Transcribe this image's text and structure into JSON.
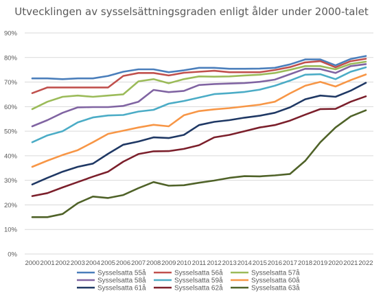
{
  "chart_data": {
    "type": "line",
    "title": "Utvecklingen av sysselsättningsgraden enligt ålder under 2000-talet",
    "xlabel": "",
    "ylabel": "",
    "ylim": [
      0,
      90
    ],
    "y_ticks": [
      "0%",
      "10%",
      "20%",
      "30%",
      "40%",
      "50%",
      "60%",
      "70%",
      "80%",
      "90%"
    ],
    "grid": true,
    "legend_position": "bottom",
    "x": [
      "2000",
      "2001",
      "2002",
      "2003",
      "2004",
      "2005",
      "2006",
      "2007",
      "2008",
      "2009",
      "2010",
      "2011",
      "2012",
      "2013",
      "2014",
      "2015",
      "2016",
      "2017",
      "2018",
      "2019",
      "2020",
      "2021",
      "2022"
    ],
    "series": [
      {
        "name": "Sysselsatta 55å",
        "color": "#4a7ebb",
        "values": [
          71.5,
          71.5,
          71.2,
          71.5,
          71.5,
          72.5,
          74.2,
          75.2,
          75.2,
          74.0,
          74.8,
          75.8,
          75.8,
          75.4,
          75.4,
          75.5,
          75.8,
          77.2,
          79.2,
          79.2,
          76.8,
          79.4,
          80.6
        ]
      },
      {
        "name": "Sysselsatta 56å",
        "color": "#c0504d",
        "values": [
          65.5,
          67.8,
          67.8,
          67.8,
          67.8,
          67.8,
          72.5,
          73.7,
          73.7,
          72.7,
          73.8,
          74.2,
          74.6,
          74.0,
          74.0,
          74.0,
          74.9,
          76.1,
          78.0,
          78.5,
          76.0,
          78.5,
          79.5
        ]
      },
      {
        "name": "Sysselsatta 57å",
        "color": "#9bbb59",
        "values": [
          59.0,
          62.0,
          64.0,
          64.5,
          64.0,
          64.5,
          65.0,
          70.3,
          71.2,
          69.5,
          71.2,
          72.3,
          72.2,
          72.3,
          72.7,
          73.0,
          73.7,
          75.0,
          76.5,
          76.5,
          75.2,
          77.4,
          78.3
        ]
      },
      {
        "name": "Sysselsatta 58å",
        "color": "#8064a2",
        "values": [
          52.0,
          54.5,
          57.5,
          59.7,
          59.8,
          59.8,
          60.3,
          62.0,
          66.8,
          65.9,
          66.4,
          68.8,
          69.2,
          69.4,
          69.6,
          70.1,
          71.0,
          73.2,
          75.4,
          75.3,
          73.7,
          76.5,
          77.3
        ]
      },
      {
        "name": "Sysselsatta 59å",
        "color": "#4bacc6",
        "values": [
          45.5,
          48.3,
          50.0,
          53.6,
          55.6,
          56.4,
          56.6,
          58.0,
          58.7,
          61.2,
          62.3,
          63.7,
          65.1,
          65.5,
          66.0,
          66.9,
          68.5,
          70.6,
          73.0,
          73.2,
          71.2,
          74.2,
          76.0
        ]
      },
      {
        "name": "Sysselsatta 60å",
        "color": "#f79646",
        "values": [
          35.5,
          38.0,
          40.3,
          42.3,
          45.5,
          48.9,
          50.2,
          51.5,
          52.6,
          52.0,
          56.5,
          58.2,
          58.9,
          59.4,
          60.1,
          60.8,
          62.0,
          65.4,
          68.5,
          70.1,
          68.2,
          70.8,
          73.1
        ]
      },
      {
        "name": "Sysselsatta 61å",
        "color": "#1f3864",
        "values": [
          28.3,
          31.0,
          33.5,
          35.5,
          36.8,
          40.8,
          44.5,
          45.8,
          47.5,
          47.2,
          48.5,
          52.5,
          53.8,
          54.5,
          55.5,
          56.3,
          57.5,
          59.7,
          63.0,
          64.5,
          64.0,
          66.5,
          69.7
        ]
      },
      {
        "name": "Sysselsatta 62å",
        "color": "#7b1f2b",
        "values": [
          23.6,
          24.8,
          27.1,
          29.3,
          31.5,
          33.5,
          37.6,
          40.7,
          41.8,
          41.9,
          42.8,
          44.3,
          47.5,
          48.5,
          50.0,
          51.5,
          52.5,
          54.3,
          56.7,
          59.0,
          59.1,
          62.0,
          64.2
        ]
      },
      {
        "name": "Sysselsatta 63å",
        "color": "#4f6228",
        "values": [
          15.0,
          15.0,
          16.3,
          20.7,
          23.4,
          22.8,
          24.0,
          26.8,
          29.3,
          27.8,
          28.0,
          29.0,
          29.9,
          31.0,
          31.7,
          31.6,
          32.0,
          32.6,
          37.9,
          45.5,
          51.5,
          56.0,
          58.5
        ]
      }
    ]
  }
}
